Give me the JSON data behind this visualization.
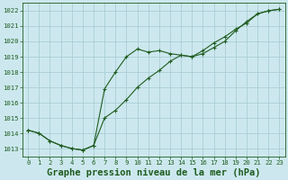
{
  "title": "Graphe pression niveau de la mer (hPa)",
  "background_color": "#cce8ee",
  "grid_color": "#aacdd6",
  "line_color": "#1f5c1f",
  "ylim": [
    1012.5,
    1022.5
  ],
  "xlim": [
    -0.5,
    23.5
  ],
  "yticks": [
    1013,
    1014,
    1015,
    1016,
    1017,
    1018,
    1019,
    1020,
    1021,
    1022
  ],
  "xticks": [
    0,
    1,
    2,
    3,
    4,
    5,
    6,
    7,
    8,
    9,
    10,
    11,
    12,
    13,
    14,
    15,
    16,
    17,
    18,
    19,
    20,
    21,
    22,
    23
  ],
  "series1": [
    1014.2,
    1014.0,
    1013.5,
    1013.2,
    1013.0,
    1012.9,
    1013.2,
    1015.0,
    1015.5,
    1016.2,
    1017.0,
    1017.6,
    1018.1,
    1018.7,
    1019.1,
    1019.0,
    1019.2,
    1019.6,
    1020.0,
    1020.7,
    1021.3,
    1021.8,
    1022.0,
    1022.1
  ],
  "series2": [
    1014.2,
    1014.0,
    1013.5,
    1013.2,
    1013.0,
    1012.9,
    1013.2,
    1016.9,
    1018.0,
    1019.0,
    1019.5,
    1019.3,
    1019.4,
    1019.2,
    1019.1,
    1019.0,
    1019.4,
    1019.9,
    1020.3,
    1020.8,
    1021.2,
    1021.8,
    1022.0,
    1022.1
  ],
  "title_fontsize": 7.5,
  "tick_fontsize": 5.2,
  "figsize": [
    3.2,
    2.0
  ],
  "dpi": 100
}
